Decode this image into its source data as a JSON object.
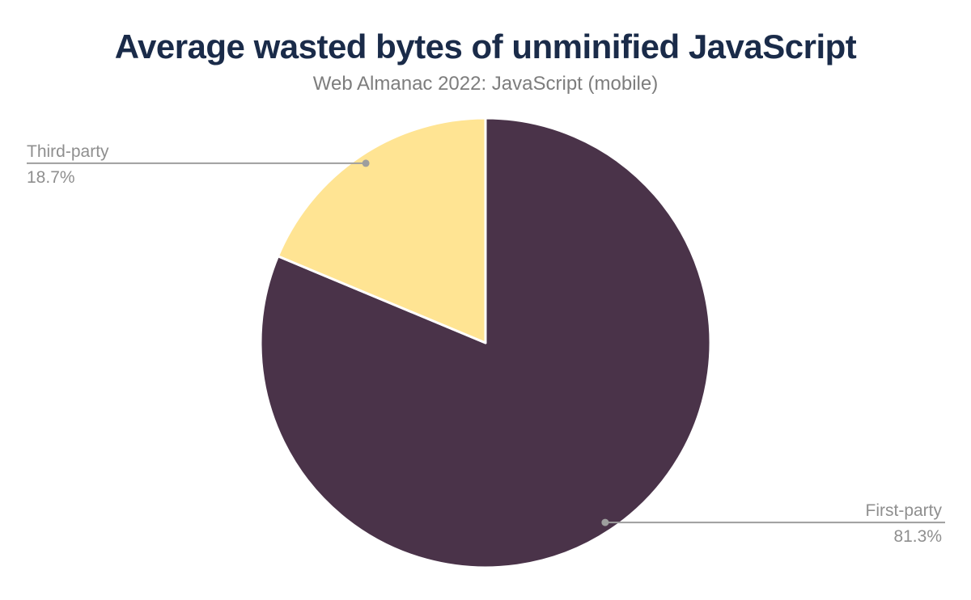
{
  "chart_data": {
    "type": "pie",
    "title": "Average wasted bytes of unminified JavaScript",
    "subtitle": "Web Almanac 2022: JavaScript (mobile)",
    "start_angle_deg": 0,
    "direction": "clockwise",
    "slices": [
      {
        "label": "First-party",
        "value": 81.3,
        "display": "81.3%",
        "color": "#4a3349"
      },
      {
        "label": "Third-party",
        "value": 18.7,
        "display": "18.7%",
        "color": "#ffe493"
      }
    ],
    "slice_stroke_color": "#ffffff",
    "callout_line_color": "#9e9e9e",
    "callout_dot_color": "#9e9e9e",
    "label_text_color": "#8f8f8f",
    "title_color": "#1a2b49",
    "subtitle_color": "#7d7d7d",
    "background_color": "#ffffff",
    "legend": "none",
    "grid": "off"
  }
}
